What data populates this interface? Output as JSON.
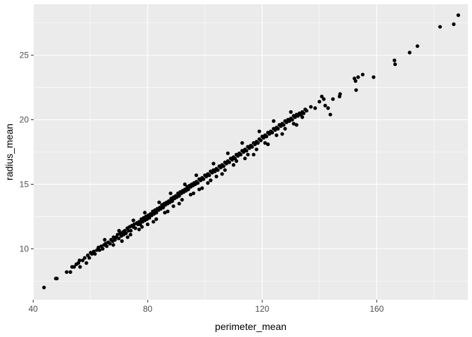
{
  "chart_data": {
    "type": "scatter",
    "title": "",
    "xlabel": "perimeter_mean",
    "ylabel": "radius_mean",
    "xlim": [
      40.2,
      191.8
    ],
    "ylim": [
      6.05,
      28.95
    ],
    "x_ticks": [
      40,
      80,
      120,
      160
    ],
    "x_minor_ticks": [
      60,
      100,
      140,
      180
    ],
    "y_ticks": [
      10,
      15,
      20,
      25
    ],
    "y_minor_ticks": [
      7.5,
      12.5,
      17.5,
      22.5,
      27.5
    ],
    "grid": true,
    "legend": "none",
    "panel_color": "#ebebeb",
    "grid_color": "#ffffff",
    "point_color": "#000000",
    "points": [
      [
        43.8,
        7.0
      ],
      [
        47.9,
        7.7
      ],
      [
        48.3,
        7.7
      ],
      [
        51.7,
        8.2
      ],
      [
        53.0,
        8.2
      ],
      [
        53.6,
        8.6
      ],
      [
        54.3,
        8.6
      ],
      [
        55.1,
        8.8
      ],
      [
        55.8,
        8.9
      ],
      [
        56.2,
        9.1
      ],
      [
        56.4,
        8.6
      ],
      [
        57.3,
        9.1
      ],
      [
        58.0,
        9.3
      ],
      [
        58.6,
        8.9
      ],
      [
        59.1,
        9.5
      ],
      [
        59.6,
        9.3
      ],
      [
        60.1,
        9.7
      ],
      [
        60.5,
        9.6
      ],
      [
        61.2,
        9.8
      ],
      [
        61.6,
        9.6
      ],
      [
        62.3,
        9.9
      ],
      [
        62.8,
        10.1
      ],
      [
        63.2,
        9.9
      ],
      [
        63.8,
        10.2
      ],
      [
        64.3,
        10.0
      ],
      [
        64.8,
        10.3
      ],
      [
        65.3,
        10.4
      ],
      [
        65.7,
        10.2
      ],
      [
        66.2,
        10.5
      ],
      [
        66.8,
        10.4
      ],
      [
        67.2,
        10.7
      ],
      [
        67.8,
        10.6
      ],
      [
        68.1,
        10.9
      ],
      [
        68.6,
        10.7
      ],
      [
        69.0,
        10.9
      ],
      [
        69.5,
        11.1
      ],
      [
        69.9,
        10.8
      ],
      [
        70.4,
        11.2
      ],
      [
        70.8,
        11.0
      ],
      [
        71.3,
        11.3
      ],
      [
        71.6,
        11.1
      ],
      [
        72.0,
        11.4
      ],
      [
        72.4,
        11.2
      ],
      [
        72.9,
        11.6
      ],
      [
        73.3,
        11.4
      ],
      [
        73.7,
        11.7
      ],
      [
        74.1,
        11.4
      ],
      [
        74.5,
        11.8
      ],
      [
        74.9,
        11.7
      ],
      [
        75.3,
        11.9
      ],
      [
        75.7,
        11.6
      ],
      [
        76.2,
        12.0
      ],
      [
        76.6,
        11.9
      ],
      [
        77.0,
        12.1
      ],
      [
        77.4,
        11.9
      ],
      [
        77.8,
        12.3
      ],
      [
        78.2,
        12.1
      ],
      [
        78.6,
        12.4
      ],
      [
        79.0,
        12.2
      ],
      [
        79.4,
        12.5
      ],
      [
        79.8,
        12.3
      ],
      [
        80.2,
        12.6
      ],
      [
        80.6,
        12.4
      ],
      [
        81.0,
        12.7
      ],
      [
        81.4,
        12.6
      ],
      [
        81.8,
        12.9
      ],
      [
        82.2,
        12.7
      ],
      [
        82.6,
        13.0
      ],
      [
        83.0,
        12.8
      ],
      [
        83.4,
        13.1
      ],
      [
        83.8,
        13.0
      ],
      [
        84.2,
        13.2
      ],
      [
        84.6,
        13.1
      ],
      [
        85.0,
        13.4
      ],
      [
        85.4,
        13.2
      ],
      [
        85.8,
        13.5
      ],
      [
        86.2,
        13.4
      ],
      [
        86.6,
        13.6
      ],
      [
        87.0,
        13.5
      ],
      [
        87.4,
        13.7
      ],
      [
        87.8,
        13.6
      ],
      [
        88.2,
        13.9
      ],
      [
        88.6,
        13.7
      ],
      [
        89.0,
        14.0
      ],
      [
        89.4,
        13.9
      ],
      [
        89.8,
        14.1
      ],
      [
        90.2,
        14.0
      ],
      [
        90.6,
        14.3
      ],
      [
        91.0,
        14.1
      ],
      [
        91.4,
        14.4
      ],
      [
        91.8,
        14.3
      ],
      [
        92.2,
        14.5
      ],
      [
        92.6,
        14.4
      ],
      [
        93.0,
        14.6
      ],
      [
        93.4,
        14.5
      ],
      [
        93.8,
        14.8
      ],
      [
        94.2,
        14.6
      ],
      [
        94.6,
        14.9
      ],
      [
        95.0,
        14.8
      ],
      [
        95.4,
        15.0
      ],
      [
        95.8,
        14.9
      ],
      [
        96.2,
        15.1
      ],
      [
        96.6,
        15.0
      ],
      [
        97.0,
        15.2
      ],
      [
        97.5,
        15.1
      ],
      [
        98.0,
        15.4
      ],
      [
        98.5,
        15.3
      ],
      [
        99.0,
        15.5
      ],
      [
        99.5,
        15.4
      ],
      [
        100.0,
        15.7
      ],
      [
        100.5,
        15.6
      ],
      [
        101.0,
        15.8
      ],
      [
        101.5,
        15.7
      ],
      [
        102.0,
        16.0
      ],
      [
        102.5,
        15.9
      ],
      [
        103.0,
        16.1
      ],
      [
        103.5,
        16.0
      ],
      [
        104.0,
        16.2
      ],
      [
        104.5,
        16.1
      ],
      [
        105.0,
        16.4
      ],
      [
        105.5,
        16.3
      ],
      [
        106.0,
        16.5
      ],
      [
        106.5,
        16.4
      ],
      [
        107.0,
        16.7
      ],
      [
        107.5,
        16.6
      ],
      [
        108.0,
        16.8
      ],
      [
        108.5,
        16.7
      ],
      [
        109.0,
        17.0
      ],
      [
        109.5,
        16.9
      ],
      [
        110.0,
        17.1
      ],
      [
        110.5,
        17.0
      ],
      [
        111.0,
        17.3
      ],
      [
        111.5,
        17.2
      ],
      [
        112.0,
        17.4
      ],
      [
        112.5,
        17.3
      ],
      [
        113.0,
        17.6
      ],
      [
        113.5,
        17.5
      ],
      [
        114.0,
        17.7
      ],
      [
        114.5,
        17.6
      ],
      [
        115.0,
        17.9
      ],
      [
        115.5,
        17.8
      ],
      [
        116.0,
        18.0
      ],
      [
        116.5,
        17.9
      ],
      [
        117.0,
        18.2
      ],
      [
        117.5,
        18.1
      ],
      [
        118.0,
        18.3
      ],
      [
        118.5,
        18.2
      ],
      [
        119.0,
        18.5
      ],
      [
        119.5,
        18.4
      ],
      [
        120.0,
        18.7
      ],
      [
        120.5,
        18.6
      ],
      [
        121.0,
        18.8
      ],
      [
        121.5,
        18.7
      ],
      [
        122.0,
        19.0
      ],
      [
        122.5,
        18.9
      ],
      [
        123.0,
        19.1
      ],
      [
        123.5,
        19.0
      ],
      [
        124.0,
        19.3
      ],
      [
        124.5,
        19.2
      ],
      [
        125.0,
        19.4
      ],
      [
        125.5,
        19.3
      ],
      [
        126.0,
        19.6
      ],
      [
        126.5,
        19.5
      ],
      [
        127.0,
        19.7
      ],
      [
        127.5,
        19.6
      ],
      [
        128.0,
        19.9
      ],
      [
        128.5,
        19.8
      ],
      [
        129.0,
        20.0
      ],
      [
        129.5,
        19.9
      ],
      [
        130.0,
        20.1
      ],
      [
        130.5,
        20.0
      ],
      [
        131.0,
        20.3
      ],
      [
        131.5,
        20.2
      ],
      [
        132.0,
        20.4
      ],
      [
        132.5,
        20.3
      ],
      [
        133.0,
        20.5
      ],
      [
        133.5,
        20.4
      ],
      [
        134.0,
        20.6
      ],
      [
        134.5,
        20.5
      ],
      [
        135.0,
        20.8
      ],
      [
        135.5,
        20.7
      ],
      [
        68.0,
        10.3
      ],
      [
        71.0,
        10.6
      ],
      [
        74.0,
        11.1
      ],
      [
        77.0,
        11.5
      ],
      [
        80.0,
        11.9
      ],
      [
        83.0,
        12.3
      ],
      [
        86.0,
        12.8
      ],
      [
        89.0,
        13.3
      ],
      [
        92.0,
        13.8
      ],
      [
        95.0,
        14.2
      ],
      [
        98.0,
        14.6
      ],
      [
        101.0,
        15.1
      ],
      [
        104.0,
        15.6
      ],
      [
        107.0,
        16.1
      ],
      [
        111.0,
        16.8
      ],
      [
        115.0,
        17.3
      ],
      [
        118.0,
        17.7
      ],
      [
        121.0,
        18.2
      ],
      [
        125.0,
        18.8
      ],
      [
        128.0,
        19.3
      ],
      [
        131.0,
        19.7
      ],
      [
        134.0,
        20.2
      ],
      [
        65.0,
        10.7
      ],
      [
        70.0,
        11.4
      ],
      [
        75.0,
        12.2
      ],
      [
        79.0,
        12.8
      ],
      [
        84.0,
        13.6
      ],
      [
        88.0,
        14.3
      ],
      [
        93.0,
        15.0
      ],
      [
        97.0,
        15.7
      ],
      [
        103.0,
        16.6
      ],
      [
        108.0,
        17.4
      ],
      [
        113.0,
        18.2
      ],
      [
        119.0,
        19.1
      ],
      [
        124.0,
        19.9
      ],
      [
        130.0,
        20.6
      ],
      [
        73.0,
        10.9
      ],
      [
        78.0,
        11.7
      ],
      [
        82.0,
        12.1
      ],
      [
        87.0,
        12.9
      ],
      [
        91.0,
        13.5
      ],
      [
        96.0,
        14.3
      ],
      [
        99.0,
        14.7
      ],
      [
        102.0,
        15.3
      ],
      [
        106.0,
        15.8
      ],
      [
        110.0,
        16.5
      ],
      [
        114.0,
        17.0
      ],
      [
        117.0,
        17.3
      ],
      [
        122.0,
        18.1
      ],
      [
        127.0,
        18.9
      ],
      [
        132.0,
        19.6
      ],
      [
        137.0,
        21.0
      ],
      [
        138.5,
        20.9
      ],
      [
        140.0,
        21.4
      ],
      [
        141.5,
        21.6
      ],
      [
        142.0,
        21.1
      ],
      [
        143.0,
        20.9
      ],
      [
        143.8,
        20.4
      ],
      [
        144.7,
        21.6
      ],
      [
        147.2,
        22.0
      ],
      [
        147.0,
        21.8
      ],
      [
        140.8,
        21.8
      ],
      [
        152.2,
        23.2
      ],
      [
        152.8,
        22.3
      ],
      [
        152.6,
        23.0
      ],
      [
        153.5,
        23.3
      ],
      [
        155.1,
        23.5
      ],
      [
        158.9,
        23.3
      ],
      [
        166.2,
        24.6
      ],
      [
        166.4,
        24.3
      ],
      [
        171.5,
        25.2
      ],
      [
        174.2,
        25.7
      ],
      [
        182.1,
        27.2
      ],
      [
        186.9,
        27.4
      ],
      [
        188.5,
        28.1
      ]
    ]
  }
}
